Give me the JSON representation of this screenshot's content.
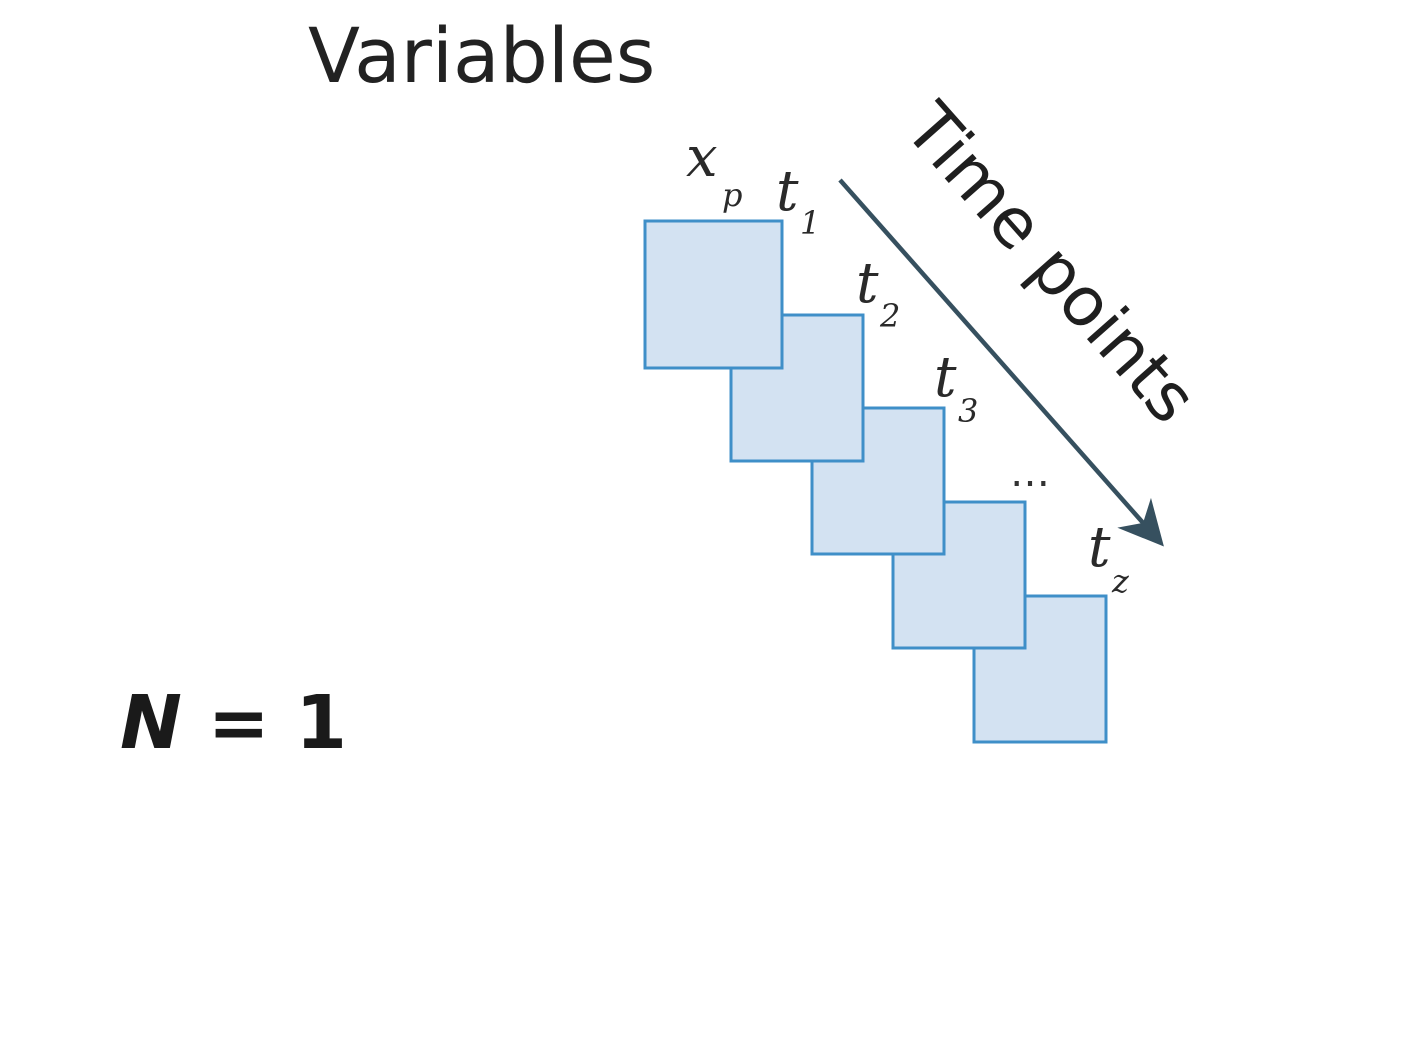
{
  "heading": "Variables",
  "sample_size": {
    "symbol": "N",
    "equals": " = ",
    "value": "1"
  },
  "variable_label": {
    "main": "x",
    "sub": "p"
  },
  "time_axis_label": "Time points",
  "time_points": [
    {
      "main": "t",
      "sub": "1"
    },
    {
      "main": "t",
      "sub": "2"
    },
    {
      "main": "t",
      "sub": "3"
    },
    {
      "main": "…",
      "sub": ""
    },
    {
      "main": "t",
      "sub": "z"
    }
  ],
  "colors": {
    "frame_fill": "#d3e2f2",
    "frame_stroke": "#3f8fc8",
    "arrow": "#36505f",
    "text": "#222222"
  }
}
